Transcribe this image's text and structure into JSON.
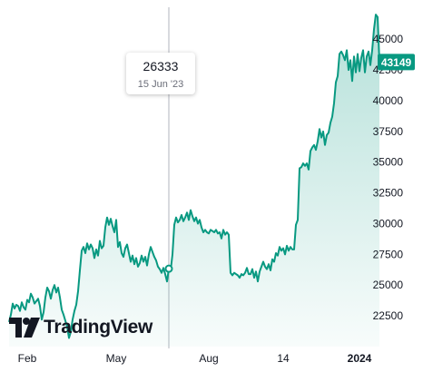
{
  "chart_data": {
    "type": "area",
    "x_tick_labels": [
      "Feb",
      "May",
      "Aug",
      "14",
      "2024"
    ],
    "y_ticks": [
      22500,
      25000,
      27500,
      30000,
      32500,
      35000,
      37500,
      40000,
      42500,
      45000
    ],
    "ylim": [
      20000,
      47600
    ],
    "last_value": "43149",
    "line_color": "#089981",
    "tooltip": {
      "value": "26333",
      "date": "15 Jun '23"
    },
    "series": [
      {
        "points": [
          [
            0,
            22000
          ],
          [
            2,
            22600
          ],
          [
            4,
            23500
          ],
          [
            6,
            23100
          ],
          [
            8,
            23400
          ],
          [
            10,
            23300
          ],
          [
            12,
            22900
          ],
          [
            14,
            23600
          ],
          [
            16,
            23200
          ],
          [
            18,
            23000
          ],
          [
            20,
            23800
          ],
          [
            22,
            23600
          ],
          [
            24,
            24300
          ],
          [
            26,
            24000
          ],
          [
            28,
            23500
          ],
          [
            30,
            23700
          ],
          [
            32,
            23900
          ],
          [
            34,
            23300
          ],
          [
            36,
            22200
          ],
          [
            38,
            22800
          ],
          [
            40,
            24000
          ],
          [
            42,
            24800
          ],
          [
            44,
            24500
          ],
          [
            46,
            23900
          ],
          [
            48,
            24600
          ],
          [
            50,
            25000
          ],
          [
            52,
            24400
          ],
          [
            54,
            24800
          ],
          [
            56,
            24000
          ],
          [
            58,
            23000
          ],
          [
            60,
            22600
          ],
          [
            62,
            22100
          ],
          [
            64,
            21600
          ],
          [
            66,
            20700
          ],
          [
            68,
            21200
          ],
          [
            70,
            22200
          ],
          [
            72,
            22900
          ],
          [
            74,
            23400
          ],
          [
            76,
            24500
          ],
          [
            78,
            26200
          ],
          [
            80,
            27800
          ],
          [
            82,
            28100
          ],
          [
            84,
            27600
          ],
          [
            86,
            28400
          ],
          [
            88,
            27900
          ],
          [
            90,
            28300
          ],
          [
            92,
            28000
          ],
          [
            94,
            27200
          ],
          [
            96,
            27900
          ],
          [
            98,
            27400
          ],
          [
            100,
            28600
          ],
          [
            102,
            28000
          ],
          [
            104,
            28200
          ],
          [
            106,
            29700
          ],
          [
            108,
            30500
          ],
          [
            110,
            29900
          ],
          [
            112,
            30400
          ],
          [
            114,
            29800
          ],
          [
            116,
            29300
          ],
          [
            118,
            30300
          ],
          [
            120,
            28100
          ],
          [
            122,
            28500
          ],
          [
            124,
            27600
          ],
          [
            126,
            27300
          ],
          [
            128,
            28000
          ],
          [
            130,
            28300
          ],
          [
            132,
            27600
          ],
          [
            134,
            26900
          ],
          [
            136,
            27400
          ],
          [
            138,
            26700
          ],
          [
            140,
            27200
          ],
          [
            142,
            26500
          ],
          [
            144,
            26800
          ],
          [
            146,
            27400
          ],
          [
            148,
            26900
          ],
          [
            150,
            27300
          ],
          [
            152,
            26600
          ],
          [
            154,
            27500
          ],
          [
            156,
            28100
          ],
          [
            158,
            27700
          ],
          [
            160,
            27300
          ],
          [
            162,
            27000
          ],
          [
            164,
            26500
          ],
          [
            166,
            26300
          ],
          [
            168,
            26000
          ],
          [
            170,
            26400
          ],
          [
            172,
            25900
          ],
          [
            174,
            25300
          ],
          [
            176,
            26333
          ],
          [
            178,
            26200
          ],
          [
            180,
            27500
          ],
          [
            182,
            29900
          ],
          [
            184,
            30500
          ],
          [
            186,
            30100
          ],
          [
            188,
            30300
          ],
          [
            190,
            30700
          ],
          [
            192,
            30200
          ],
          [
            194,
            30500
          ],
          [
            196,
            30900
          ],
          [
            198,
            30300
          ],
          [
            200,
            31100
          ],
          [
            202,
            30600
          ],
          [
            204,
            30200
          ],
          [
            206,
            30500
          ],
          [
            208,
            30000
          ],
          [
            210,
            30300
          ],
          [
            212,
            29700
          ],
          [
            214,
            29300
          ],
          [
            216,
            29500
          ],
          [
            218,
            29300
          ],
          [
            220,
            29200
          ],
          [
            222,
            29500
          ],
          [
            224,
            29400
          ],
          [
            226,
            29300
          ],
          [
            228,
            29500
          ],
          [
            230,
            29200
          ],
          [
            232,
            29300
          ],
          [
            234,
            28800
          ],
          [
            236,
            29500
          ],
          [
            238,
            29100
          ],
          [
            240,
            29300
          ],
          [
            242,
            29100
          ],
          [
            244,
            26000
          ],
          [
            246,
            25800
          ],
          [
            248,
            26000
          ],
          [
            250,
            25900
          ],
          [
            252,
            25800
          ],
          [
            254,
            25600
          ],
          [
            256,
            25900
          ],
          [
            258,
            25800
          ],
          [
            260,
            26000
          ],
          [
            262,
            26400
          ],
          [
            264,
            25900
          ],
          [
            266,
            25900
          ],
          [
            268,
            26300
          ],
          [
            270,
            25600
          ],
          [
            272,
            26100
          ],
          [
            274,
            25300
          ],
          [
            276,
            26100
          ],
          [
            278,
            26500
          ],
          [
            280,
            26900
          ],
          [
            282,
            26500
          ],
          [
            284,
            26300
          ],
          [
            286,
            26700
          ],
          [
            288,
            26200
          ],
          [
            290,
            27100
          ],
          [
            292,
            26900
          ],
          [
            294,
            27600
          ],
          [
            296,
            27400
          ],
          [
            298,
            28100
          ],
          [
            300,
            27800
          ],
          [
            302,
            28000
          ],
          [
            304,
            27500
          ],
          [
            306,
            28200
          ],
          [
            308,
            27800
          ],
          [
            310,
            28100
          ],
          [
            312,
            27900
          ],
          [
            314,
            27900
          ],
          [
            316,
            29900
          ],
          [
            318,
            30300
          ],
          [
            320,
            34500
          ],
          [
            322,
            34600
          ],
          [
            324,
            34900
          ],
          [
            326,
            34700
          ],
          [
            328,
            34900
          ],
          [
            330,
            34400
          ],
          [
            332,
            35900
          ],
          [
            334,
            36200
          ],
          [
            336,
            36400
          ],
          [
            338,
            36000
          ],
          [
            340,
            36700
          ],
          [
            342,
            37700
          ],
          [
            344,
            37000
          ],
          [
            346,
            37500
          ],
          [
            348,
            36400
          ],
          [
            350,
            37200
          ],
          [
            352,
            37400
          ],
          [
            354,
            38200
          ],
          [
            356,
            38700
          ],
          [
            358,
            39800
          ],
          [
            360,
            41500
          ],
          [
            362,
            42000
          ],
          [
            364,
            43800
          ],
          [
            366,
            44000
          ],
          [
            368,
            43700
          ],
          [
            370,
            43300
          ],
          [
            372,
            44100
          ],
          [
            374,
            42500
          ],
          [
            376,
            43300
          ],
          [
            378,
            41600
          ],
          [
            380,
            43600
          ],
          [
            382,
            42300
          ],
          [
            384,
            43800
          ],
          [
            386,
            42400
          ],
          [
            388,
            43500
          ],
          [
            390,
            44100
          ],
          [
            392,
            42300
          ],
          [
            394,
            43600
          ],
          [
            396,
            44000
          ],
          [
            398,
            42900
          ],
          [
            400,
            44100
          ],
          [
            402,
            45800
          ],
          [
            404,
            47000
          ],
          [
            406,
            46800
          ],
          [
            408,
            43149
          ]
        ]
      }
    ]
  }
}
